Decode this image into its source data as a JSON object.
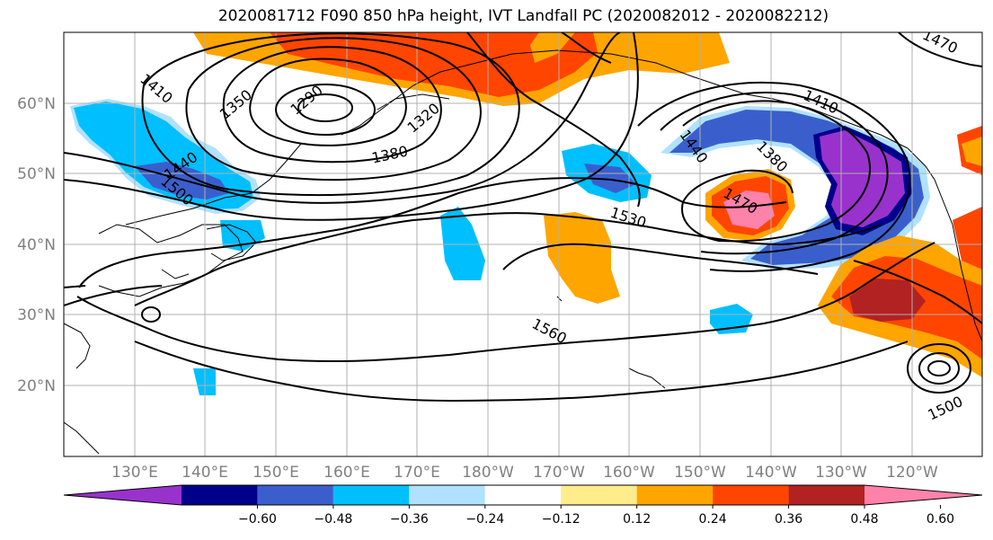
{
  "title": "2020081712 F090 850 hPa height, IVT Landfall PC (2020082012 - 2020082212)",
  "map": {
    "lat_labels": [
      "60°N",
      "50°N",
      "40°N",
      "30°N",
      "20°N"
    ],
    "lon_labels": [
      "130°E",
      "140°E",
      "150°E",
      "160°E",
      "170°E",
      "180°W",
      "170°W",
      "160°W",
      "150°W",
      "140°W",
      "130°W",
      "120°W"
    ],
    "contour_labels": [
      "1410",
      "1350",
      "1290",
      "1320",
      "1380",
      "1440",
      "1500",
      "1530",
      "1560",
      "1440",
      "1380",
      "1410",
      "1470",
      "1470",
      "1500"
    ],
    "extent": {
      "lon": [
        120,
        250
      ],
      "lat": [
        10,
        70
      ]
    }
  },
  "colorbar": {
    "ticks": [
      "−0.60",
      "−0.48",
      "−0.36",
      "−0.24",
      "−0.12",
      "0.12",
      "0.24",
      "0.36",
      "0.48",
      "0.60"
    ],
    "colors": [
      "#9932CC",
      "#00008B",
      "#3A5FCD",
      "#00BFFF",
      "#B0E2FF",
      "#FFFFFF",
      "#FFEC8B",
      "#FFA500",
      "#FF4500",
      "#B22222",
      "#FF82AB"
    ]
  }
}
